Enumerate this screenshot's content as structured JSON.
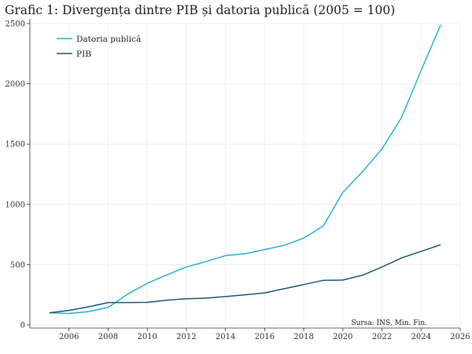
{
  "chart_data": {
    "type": "line",
    "title": "Grafic 1: Divergența dintre PIB și datoria publică (2005 = 100)",
    "xlabel": "",
    "ylabel": "",
    "xlim": [
      2004,
      2026
    ],
    "ylim": [
      0,
      2500
    ],
    "x_ticks": [
      2006,
      2008,
      2010,
      2012,
      2014,
      2016,
      2018,
      2020,
      2022,
      2024,
      2026
    ],
    "y_ticks": [
      0,
      500,
      1000,
      1500,
      2000,
      2500
    ],
    "grid": true,
    "legend_position": "top-left",
    "source_note": "Sursa: INS, Min. Fin.",
    "x": [
      2005,
      2006,
      2007,
      2008,
      2009,
      2010,
      2011,
      2012,
      2013,
      2014,
      2015,
      2016,
      2017,
      2018,
      2019,
      2020,
      2021,
      2022,
      2023,
      2024,
      2025
    ],
    "series": [
      {
        "name": "Datoria publică",
        "color": "#29b2d6",
        "values": [
          100,
          95,
          110,
          145,
          255,
          345,
          415,
          480,
          525,
          575,
          590,
          625,
          660,
          720,
          820,
          1100,
          1270,
          1460,
          1720,
          2110,
          2490
        ]
      },
      {
        "name": "PIB",
        "color": "#1d5a7a",
        "values": [
          100,
          120,
          150,
          185,
          185,
          187,
          205,
          217,
          222,
          235,
          250,
          265,
          300,
          335,
          370,
          372,
          412,
          480,
          555,
          610,
          665
        ]
      }
    ]
  }
}
